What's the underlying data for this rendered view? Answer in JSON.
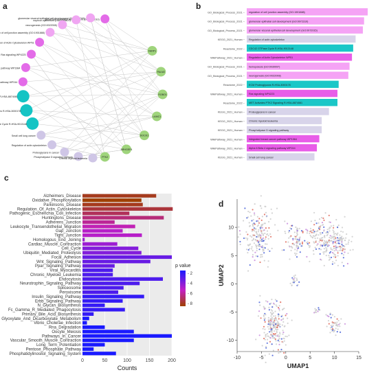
{
  "figure": {
    "panel_a_letter": "a",
    "panel_b_letter": "b",
    "panel_c_letter": "c",
    "panel_d_letter": "d"
  },
  "colors": {
    "network_magenta": "#e36be8",
    "network_pink": "#f0a6f2",
    "network_teal": "#14c4c4",
    "network_green": "#9fd47c",
    "network_lavender": "#cfc6e6",
    "bar_pink": "#f5a3f5",
    "bar_teal": "#1bc7c7",
    "bar_magenta": "#e85de8",
    "bar_lavender": "#d8d4ea",
    "pvalue_low": "#1a1aff",
    "pvalue_mid": "#c41fc4",
    "pvalue_high": "#a04000",
    "umap_gray": "#cccccc"
  },
  "network": {
    "pathway_nodes": [
      {
        "label": "glomerular epithelium development (GO:0072010)",
        "color": "magenta"
      },
      {
        "label": "glomerular visceral epithelial cell development (GO:0072015)",
        "color": "pink"
      },
      {
        "label": "nephron epithelium (GO:0048407)",
        "color": "pink"
      },
      {
        "label": "neurogenesis (GO:0022008)",
        "color": "pink"
      },
      {
        "label": "regulation of cell junction assembly (GO:1901888)",
        "color": "pink"
      },
      {
        "label": "Regulation of Actin Cytoskeleton WP51",
        "color": "magenta"
      },
      {
        "label": "Ras signaling WP4223",
        "color": "magenta"
      },
      {
        "label": "Integrated breast cancer pathway WP1984",
        "color": "magenta"
      },
      {
        "label": "Alpha 6 Beta 4 signaling pathway WP244",
        "color": "magenta"
      },
      {
        "label": "MET Activates PTK2 Signaling R-HSA-8874081",
        "color": "teal"
      },
      {
        "label": "ECM Proteoglycans R-HSA-3000178",
        "color": "teal"
      },
      {
        "label": "CDC42 GTPase Cycle R-HSA-9013148",
        "color": "teal"
      },
      {
        "label": "Small cell lung cancer",
        "color": "lavender"
      },
      {
        "label": "Regulation of actin cytoskeleton",
        "color": "lavender"
      },
      {
        "label": "Proteoglycans in cancer",
        "color": "lavender"
      },
      {
        "label": "Phospholipase D signaling pathway",
        "color": "lavender"
      },
      {
        "label": "Chronic myeloid leukemia",
        "color": "lavender"
      }
    ],
    "gene_nodes": [
      "FARP1",
      "PALM2",
      "ROBO1",
      "LAMC1",
      "DOCK1",
      "ARHGEF4",
      "PTK2"
    ]
  },
  "enrichment": [
    {
      "source": "GO_Biological_Process_2021",
      "term": "regulation of cell junction assembly (GO:1901888)",
      "value": 100,
      "color": "pink"
    },
    {
      "source": "GO_Biological_Process_2021",
      "term": "glomerular epithelial cell development (GO:0072310)",
      "value": 97,
      "color": "pink"
    },
    {
      "source": "GO_Biological_Process_2021",
      "term": "glomerular visceral epithelial cell development (GO:0072015)",
      "value": 96,
      "color": "pink"
    },
    {
      "source": "KEGG_2021_Human",
      "term": "Regulation of actin cytoskeleton",
      "value": 90,
      "color": "lavender"
    },
    {
      "source": "Reactome_2022",
      "term": "CDC42 GTPase Cycle R-HSA-9013148",
      "value": 88,
      "color": "teal"
    },
    {
      "source": "WikiPathway_2021_Human",
      "term": "Regulation of Actin Cytoskeleton WP51",
      "value": 87,
      "color": "magenta"
    },
    {
      "source": "GO_Biological_Process_2021",
      "term": "hemopoiesis (GO:0030097)",
      "value": 85,
      "color": "pink"
    },
    {
      "source": "GO_Biological_Process_2021",
      "term": "neurogenesis (GO:0022008)",
      "value": 84,
      "color": "pink"
    },
    {
      "source": "Reactome_2022",
      "term": "ECM Proteoglycans R-HSA-3000178",
      "value": 76,
      "color": "teal"
    },
    {
      "source": "WikiPathway_2021_Human",
      "term": "Ras signaling WP4223",
      "value": 75,
      "color": "magenta"
    },
    {
      "source": "Reactome_2022",
      "term": "MET Activates PTK2 Signaling R-HSA-8874081",
      "value": 75,
      "color": "teal"
    },
    {
      "source": "KEGG_2021_Human",
      "term": "Proteoglycans in cancer",
      "value": 68,
      "color": "lavender"
    },
    {
      "source": "KEGG_2021_Human",
      "term": "Chronic myeloid leukemia",
      "value": 62,
      "color": "lavender"
    },
    {
      "source": "KEGG_2021_Human",
      "term": "Phospholipase D signaling pathway",
      "value": 62,
      "color": "lavender"
    },
    {
      "source": "WikiPathway_2021_Human",
      "term": "Integrated breast cancer pathway WP1984",
      "value": 60,
      "color": "magenta"
    },
    {
      "source": "WikiPathway_2021_Human",
      "term": "Alpha 6 Beta 4 signaling pathway WP244",
      "value": 58,
      "color": "magenta"
    },
    {
      "source": "KEGG_2021_Human",
      "term": "Small cell lung cancer",
      "value": 56,
      "color": "lavender"
    }
  ],
  "chart_data": [
    {
      "type": "bar",
      "orientation": "horizontal",
      "xlabel": "Counts",
      "ylabel": "",
      "xlim": [
        0,
        200
      ],
      "xticks": [
        0,
        50,
        100,
        150,
        200
      ],
      "legend_title": "p value",
      "colorbar_ticks": [
        2,
        4,
        6,
        8
      ],
      "categories": [
        "Alzheimers_Disease",
        "Oxidative_Phosphorylation",
        "Parkinsons_Disease",
        "Regulation_Of_Actin_Cytoskeleton",
        "Pathogenic_Escherichia_Coli_Infection",
        "Huntingtons_Disease",
        "Adherens_Junction",
        "Leukocyte_Transendothelial_Migration",
        "Gap_Junction",
        "Tight_Junction",
        "Homologous_End_Joining",
        "Cardiac_Muscle_Contraction",
        "Cell_Cycle",
        "Ubiquitin_Mediated_Proteolysis",
        "Focal_Adhesion",
        "Wnt_Signaling_Pathway",
        "Ppar_Signaling_Pathway",
        "Viral_Myocarditis",
        "Chronic_Myeloid_Leukemia",
        "Endocytosis",
        "Neurotrophin_Signaling_Pathway",
        "Spliceosome",
        "Peroxisome",
        "Insulin_Signaling_Pathway",
        "Erbb_Signaling_Pathway",
        "N_Glycan_Biosynthesis",
        "Fc_Gamma_R_Mediated_Phagocytosis",
        "Primary_Bile_Acid_Biosynthesis",
        "Glyoxylate_And_Dicarboxylate_Metabolism",
        "Vibrio_Cholerae_Infection",
        "Rna_Degradation",
        "Oocyte_Meiosis",
        "Pathways_In_Cancer",
        "Vascular_Smooth_Muscle_Contraction",
        "Long_Term_Potentiation",
        "Pentose_Phosphate_Pathway",
        "Phosphatidylinositol_Signaling_System"
      ],
      "values": [
        165,
        132,
        135,
        202,
        105,
        182,
        72,
        118,
        90,
        133,
        5,
        78,
        125,
        132,
        200,
        152,
        72,
        68,
        68,
        180,
        128,
        92,
        80,
        138,
        90,
        50,
        95,
        25,
        15,
        10,
        50,
        115,
        200,
        115,
        50,
        25,
        75
      ],
      "p_values": [
        8,
        8.5,
        8,
        7.5,
        7,
        6.5,
        6,
        5.5,
        5,
        5,
        4.5,
        4.5,
        4,
        4,
        3.5,
        3.5,
        3.5,
        3,
        3,
        3,
        3,
        3,
        3,
        2.5,
        2.5,
        2.5,
        2.5,
        2.5,
        2,
        2,
        2,
        2,
        2,
        2,
        2,
        2,
        2
      ]
    },
    {
      "type": "scatter",
      "xlabel": "UMAP1",
      "ylabel": "UMAP2",
      "xlim": [
        -10,
        15
      ],
      "ylim": [
        -12,
        15
      ],
      "xticks": [
        -10,
        -5,
        0,
        5,
        10,
        15
      ],
      "yticks": [
        -10,
        -5,
        0,
        5,
        10
      ],
      "clusters": [
        {
          "cx": -5.5,
          "cy": 8.5,
          "sx": 1.6,
          "sy": 2.3,
          "n": 200
        },
        {
          "cx": 2.0,
          "cy": 7.5,
          "sx": 0.9,
          "sy": 1.4,
          "n": 80
        },
        {
          "cx": 7.5,
          "cy": 8.0,
          "sx": 2.0,
          "sy": 2.0,
          "n": 180
        },
        {
          "cx": 11.0,
          "cy": 7.0,
          "sx": 1.3,
          "sy": 1.5,
          "n": 110
        },
        {
          "cx": 1.5,
          "cy": 0.5,
          "sx": 0.5,
          "sy": 0.4,
          "n": 20
        },
        {
          "cx": -2.5,
          "cy": -7.5,
          "sx": 1.4,
          "sy": 2.2,
          "n": 230
        },
        {
          "cx": 10.0,
          "cy": -7.0,
          "sx": 0.8,
          "sy": 0.9,
          "n": 50
        },
        {
          "cx": 6.5,
          "cy": -4.5,
          "sx": 0.3,
          "sy": 0.4,
          "n": 12
        }
      ]
    }
  ]
}
